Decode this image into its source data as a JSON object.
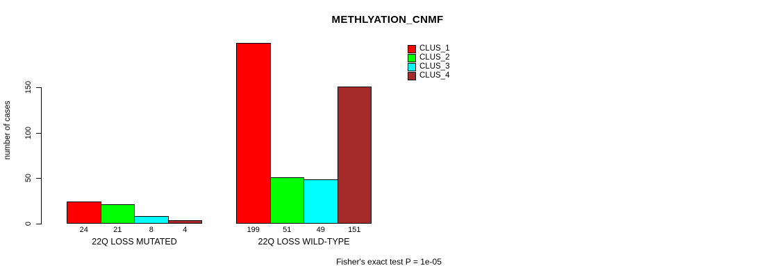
{
  "chart_data": {
    "type": "bar",
    "title": "METHLYATION_CNMF",
    "ylabel": "number of cases",
    "xlabel": "",
    "ylim": [
      0,
      150
    ],
    "y_ticks": [
      0,
      50,
      100,
      150
    ],
    "grid": false,
    "legend_position": "top-right",
    "categories": [
      "22Q LOSS MUTATED",
      "22Q LOSS WILD-TYPE"
    ],
    "series": [
      {
        "name": "CLUS_1",
        "color": "#FF0000",
        "values": [
          24,
          199
        ]
      },
      {
        "name": "CLUS_2",
        "color": "#00FF00",
        "values": [
          21,
          51
        ]
      },
      {
        "name": "CLUS_3",
        "color": "#00FFFF",
        "values": [
          8,
          49
        ]
      },
      {
        "name": "CLUS_4",
        "color": "#A52A2A",
        "values": [
          4,
          151
        ]
      }
    ],
    "bar_value_labels_shown": true,
    "annotation": "Fisher's exact test P = 1e-05"
  }
}
